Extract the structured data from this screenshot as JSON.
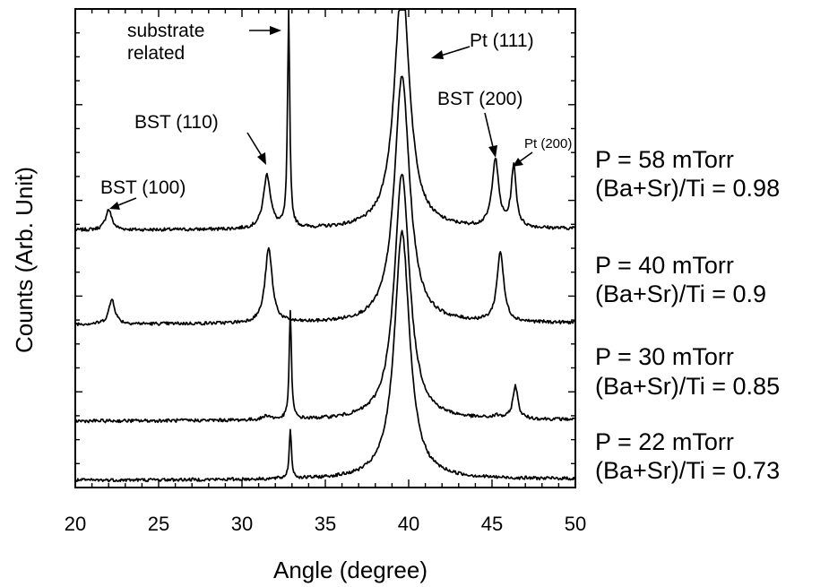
{
  "chart_data": {
    "type": "line",
    "xlabel": "Angle (degree)",
    "ylabel": "Counts (Arb. Unit)",
    "xlim": [
      20,
      50
    ],
    "x_ticks": [
      "20",
      "25",
      "30",
      "35",
      "40",
      "45",
      "50"
    ],
    "grid": false,
    "legend": "none",
    "series": [
      {
        "condition_lines": [
          "P = 58 mTorr",
          "(Ba+Sr)/Ti  = 0.98"
        ],
        "peaks": [
          {
            "x": 22.0,
            "height": 0.25
          },
          {
            "x": 31.5,
            "height": 0.65
          },
          {
            "x": 32.8,
            "height": 2.6
          },
          {
            "x": 39.6,
            "height": 3.0
          },
          {
            "x": 45.2,
            "height": 0.82
          },
          {
            "x": 46.3,
            "height": 0.73
          }
        ]
      },
      {
        "condition_lines": [
          "P = 40 mTorr",
          "(Ba+Sr)/Ti  = 0.9"
        ],
        "peaks": [
          {
            "x": 22.2,
            "height": 0.3
          },
          {
            "x": 31.6,
            "height": 0.9
          },
          {
            "x": 32.8,
            "height": 0.0
          },
          {
            "x": 39.6,
            "height": 3.0
          },
          {
            "x": 45.5,
            "height": 0.85
          },
          {
            "x": 46.3,
            "height": 0.0
          }
        ]
      },
      {
        "condition_lines": [
          "P = 30 mTorr",
          "(Ba+Sr)/Ti  = 0.85"
        ],
        "peaks": [
          {
            "x": 22.0,
            "height": 0.0
          },
          {
            "x": 31.5,
            "height": 0.05
          },
          {
            "x": 32.9,
            "height": 1.3
          },
          {
            "x": 39.6,
            "height": 3.0
          },
          {
            "x": 45.3,
            "height": 0.03
          },
          {
            "x": 46.4,
            "height": 0.4
          }
        ]
      },
      {
        "condition_lines": [
          "P = 22 mTorr",
          "(Ba+Sr)/Ti  = 0.73"
        ],
        "peaks": [
          {
            "x": 22.0,
            "height": 0.0
          },
          {
            "x": 31.5,
            "height": 0.0
          },
          {
            "x": 32.9,
            "height": 0.6
          },
          {
            "x": 39.6,
            "height": 3.0
          },
          {
            "x": 45.3,
            "height": 0.0
          },
          {
            "x": 46.3,
            "height": 0.0
          }
        ]
      }
    ],
    "annotations": [
      {
        "text_lines": [
          "substrate",
          "related"
        ],
        "points_to_x": 32.8
      },
      {
        "text_lines": [
          "Pt (111)"
        ],
        "points_to_x": 41.2
      },
      {
        "text_lines": [
          "BST (110)"
        ],
        "points_to_x": 31.5
      },
      {
        "text_lines": [
          "BST (100)"
        ],
        "points_to_x": 22.0
      },
      {
        "text_lines": [
          "BST (200)"
        ],
        "points_to_x": 45.2
      },
      {
        "text_lines": [
          "Pt (200)"
        ],
        "points_to_x": 46.3
      }
    ]
  }
}
